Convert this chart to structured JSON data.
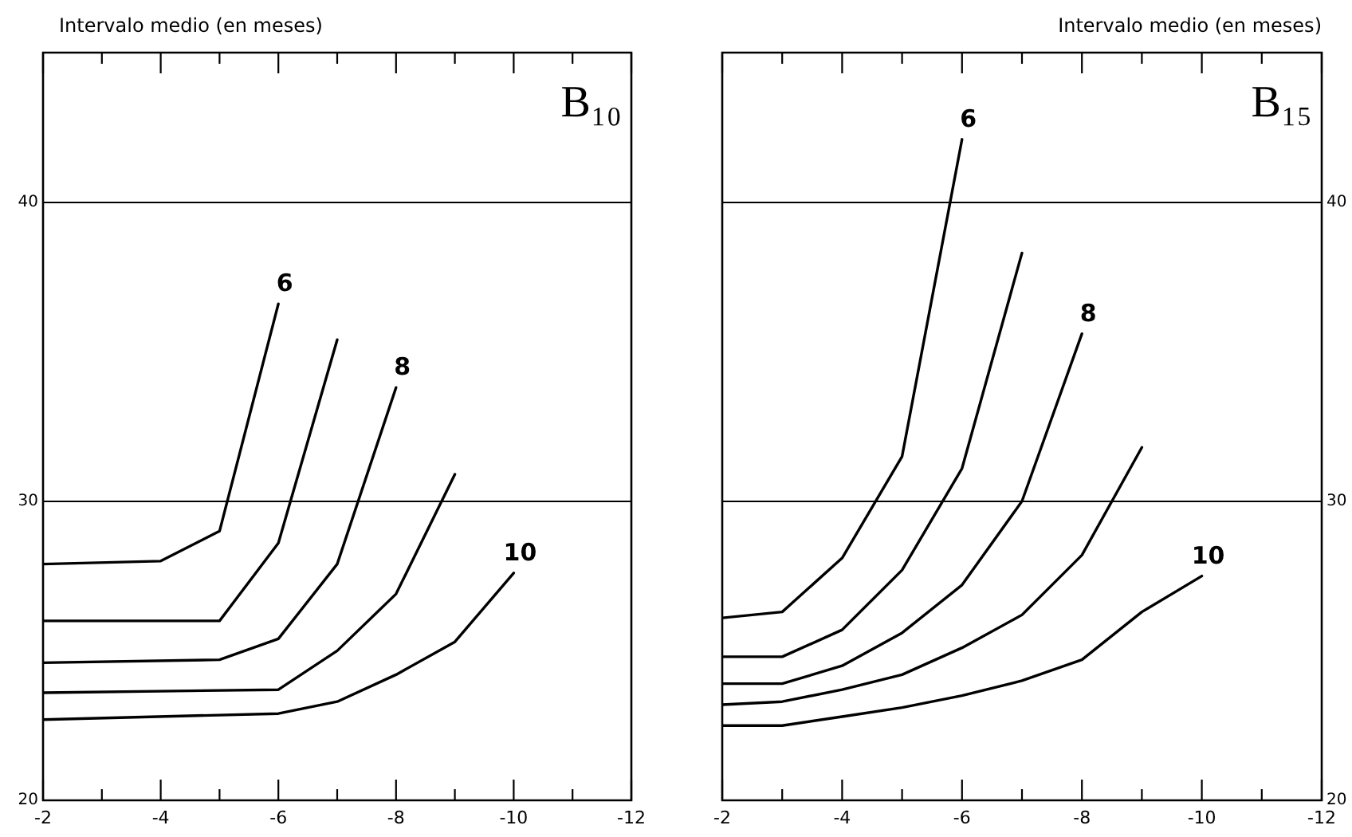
{
  "chart_data": [
    {
      "type": "line",
      "title": "B₁₀",
      "ylabel": "Intervalo medio (en meses)",
      "xlim": [
        -2,
        -12
      ],
      "xticks": [
        -2,
        {
          "value": -3,
          "label": null
        },
        -4,
        {
          "value": -5,
          "label": null
        },
        -6,
        {
          "value": -7,
          "label": null
        },
        -8,
        {
          "value": -9,
          "label": null
        },
        -10,
        {
          "value": -11,
          "label": null
        },
        -12
      ],
      "ylim": [
        20,
        45
      ],
      "yticks": [
        20,
        30,
        40
      ],
      "grid": "y",
      "series": [
        {
          "name": "6",
          "color": "#000000",
          "x": [
            -2,
            -4,
            -5,
            -6
          ],
          "values": [
            27.9,
            28.0,
            29.0,
            36.6
          ]
        },
        {
          "color": "#000000",
          "x": [
            -2,
            -5,
            -6,
            -7
          ],
          "values": [
            26.0,
            26.0,
            28.6,
            35.4
          ]
        },
        {
          "name": "8",
          "color": "#000000",
          "x": [
            -2,
            -5,
            -6,
            -7,
            -8
          ],
          "values": [
            24.6,
            24.7,
            25.4,
            27.9,
            33.8
          ]
        },
        {
          "color": "#000000",
          "x": [
            -2,
            -6,
            -7,
            -8,
            -9
          ],
          "values": [
            23.6,
            23.7,
            25.0,
            26.9,
            30.9
          ]
        },
        {
          "name": "10",
          "color": "#000000",
          "x": [
            -2,
            -6,
            -7,
            -8,
            -9,
            -10
          ],
          "values": [
            22.7,
            22.9,
            23.3,
            24.2,
            25.3,
            27.6
          ]
        }
      ]
    },
    {
      "type": "line",
      "title": "B₁₅",
      "y2label": "Intervalo medio (en meses)",
      "xlim": [
        -2,
        -12
      ],
      "xticks": [
        -2,
        {
          "value": -3,
          "label": null
        },
        -4,
        {
          "value": -5,
          "label": null
        },
        -6,
        {
          "value": -7,
          "label": null
        },
        -8,
        {
          "value": -9,
          "label": null
        },
        -10,
        {
          "value": -11,
          "label": null
        },
        -12
      ],
      "y2lim": [
        20,
        45
      ],
      "y2ticks": [
        20,
        30,
        40
      ],
      "grid": "y",
      "series": [
        {
          "name": "6",
          "color": "#000000",
          "axis": "y2",
          "x": [
            -2,
            -3,
            -4,
            -5,
            -6
          ],
          "values": [
            26.1,
            26.3,
            28.1,
            31.5,
            42.1
          ]
        },
        {
          "color": "#000000",
          "axis": "y2",
          "x": [
            -2,
            -3,
            -4,
            -5,
            -6,
            -7
          ],
          "values": [
            24.8,
            24.8,
            25.7,
            27.7,
            31.1,
            38.3
          ]
        },
        {
          "name": "8",
          "color": "#000000",
          "axis": "y2",
          "x": [
            -2,
            -3,
            -4,
            -5,
            -6,
            -7,
            -8
          ],
          "values": [
            23.9,
            23.9,
            24.5,
            25.6,
            27.2,
            30.0,
            35.6
          ]
        },
        {
          "color": "#000000",
          "axis": "y2",
          "x": [
            -2,
            -3,
            -4,
            -5,
            -6,
            -7,
            -8,
            -9
          ],
          "values": [
            23.2,
            23.3,
            23.7,
            24.2,
            25.1,
            26.2,
            28.2,
            31.8
          ]
        },
        {
          "name": "10",
          "color": "#000000",
          "axis": "y2",
          "x": [
            -2,
            -3,
            -4,
            -5,
            -6,
            -7,
            -8,
            -9,
            -10
          ],
          "values": [
            22.5,
            22.5,
            22.8,
            23.1,
            23.5,
            24.0,
            24.7,
            26.3,
            27.5
          ]
        }
      ]
    }
  ]
}
